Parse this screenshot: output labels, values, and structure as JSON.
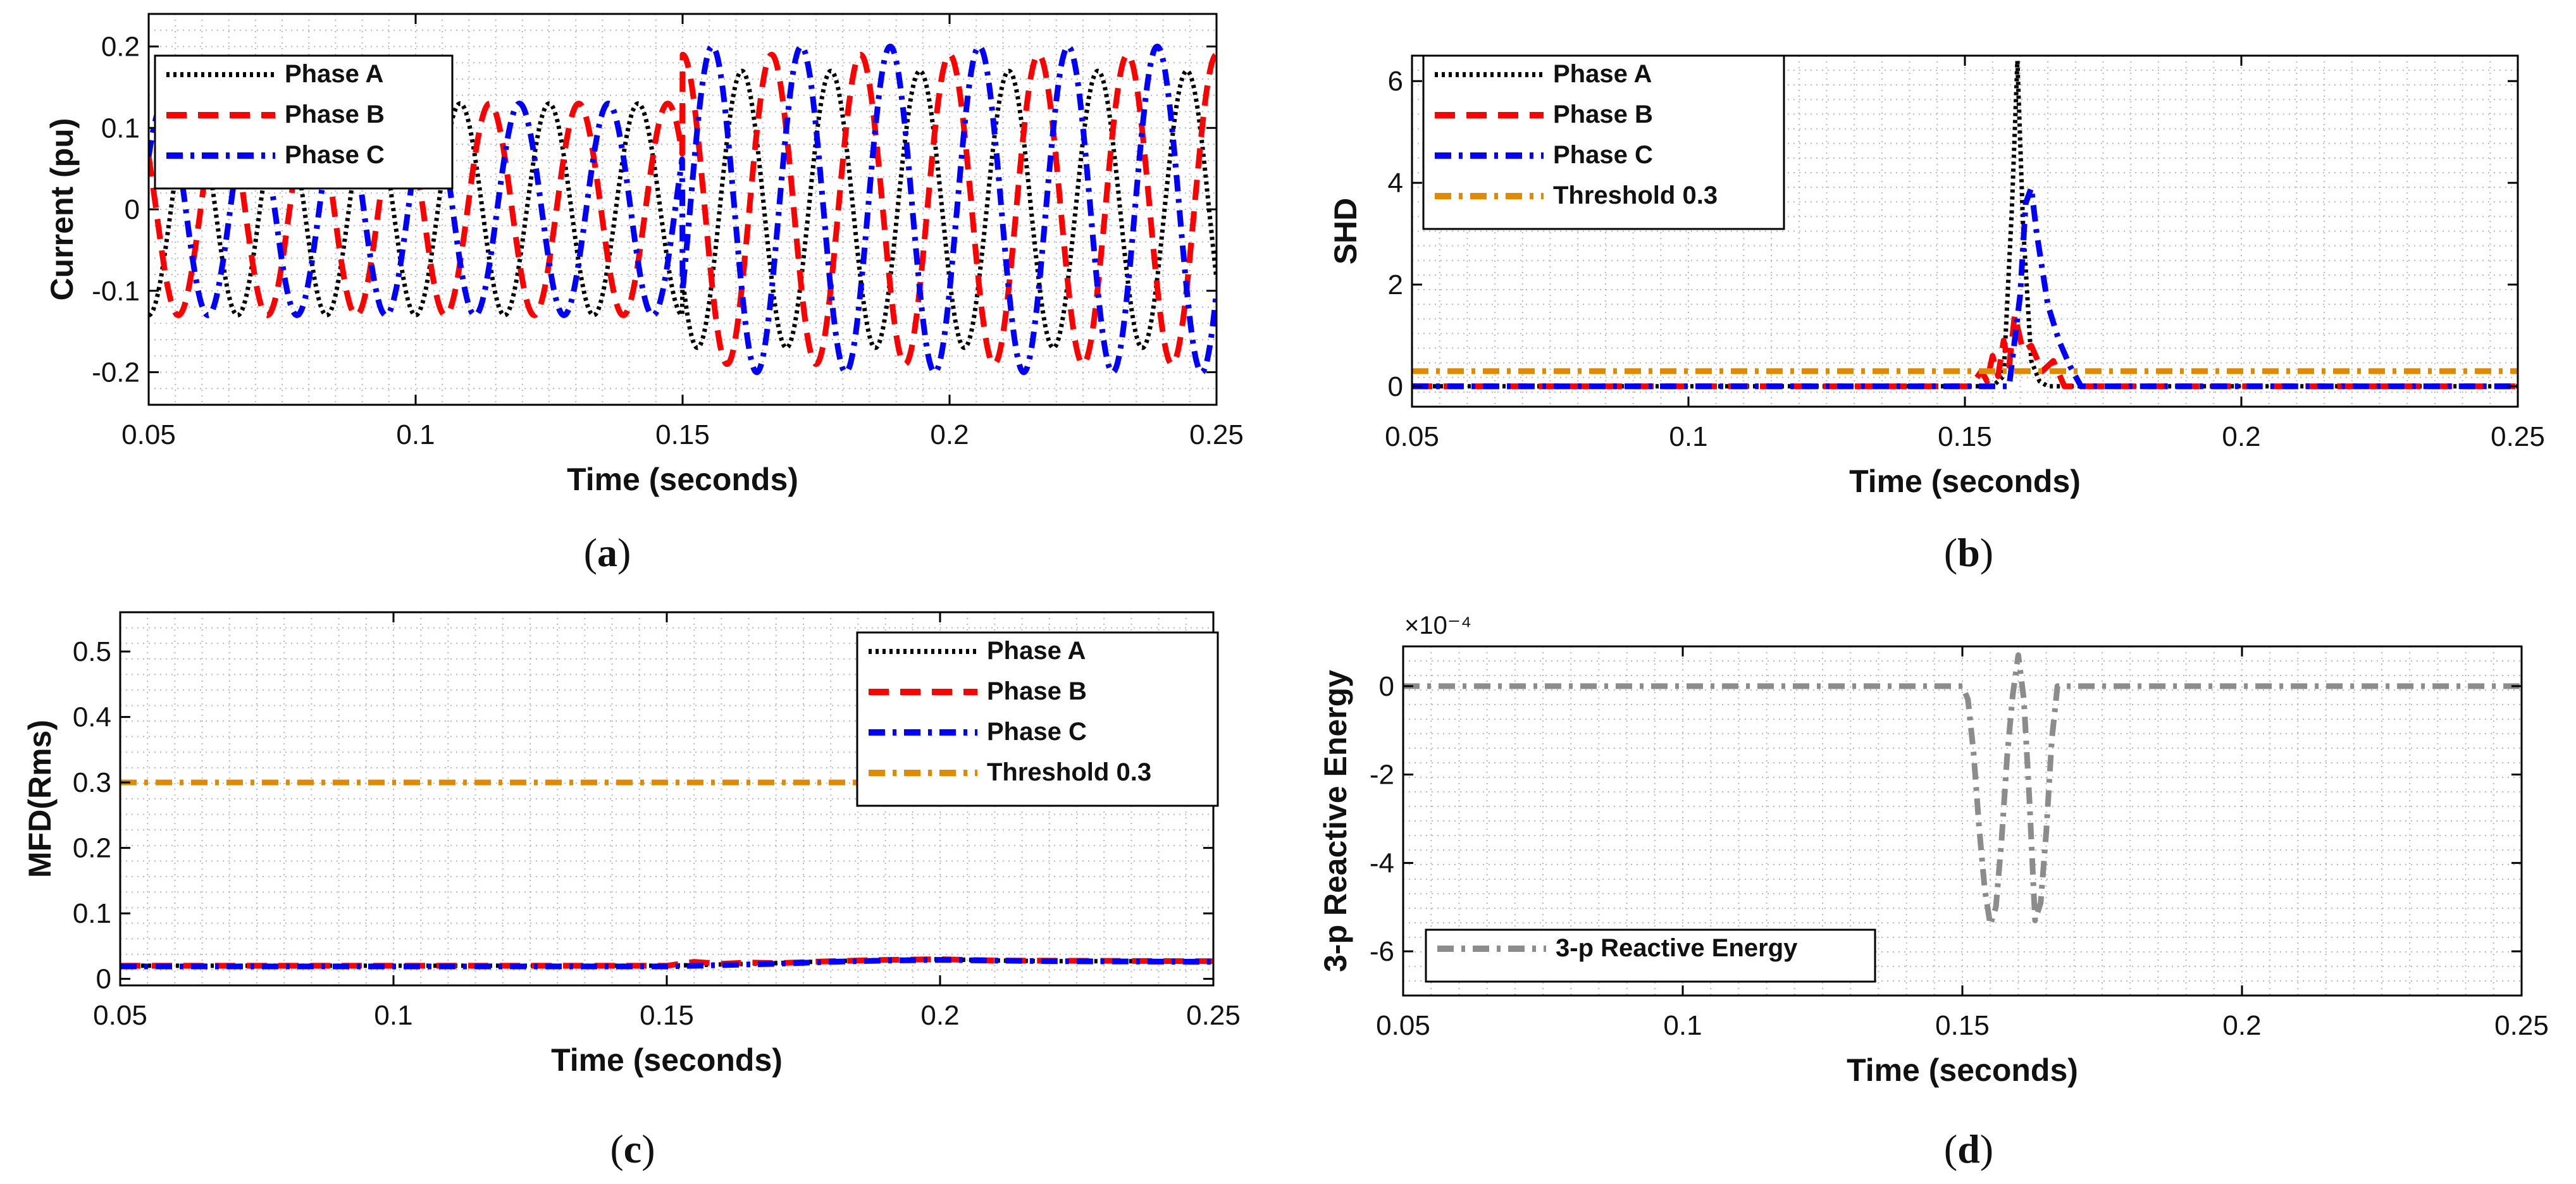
{
  "chart_data": [
    {
      "id": "a",
      "type": "line",
      "caption_letter": "a",
      "xlabel": "Time (seconds)",
      "ylabel": "Current (pu)",
      "xlim": [
        0.05,
        0.25
      ],
      "ylim": [
        -0.24,
        0.24
      ],
      "xticks": [
        0.05,
        0.1,
        0.15,
        0.2,
        0.25
      ],
      "xtick_labels": [
        "0.05",
        "0.1",
        "0.15",
        "0.2",
        "0.25"
      ],
      "yticks": [
        -0.2,
        -0.1,
        0,
        0.1,
        0.2
      ],
      "ytick_labels": [
        "-0.2",
        "-0.1",
        "0",
        "0.1",
        "0.2"
      ],
      "grid": true,
      "legend_position": "top-left",
      "series": [
        {
          "name": "Phase A",
          "color": "#000000",
          "style": "dotted",
          "segments": [
            {
              "from": 0.05,
              "to": 0.15,
              "amp": 0.13,
              "phase_deg": -90
            },
            {
              "from": 0.15,
              "to": 0.25,
              "amp": 0.17,
              "phase_deg": -150
            }
          ]
        },
        {
          "name": "Phase B",
          "color": "#ff0000",
          "style": "dashed",
          "segments": [
            {
              "from": 0.05,
              "to": 0.15,
              "amp": 0.13,
              "phase_deg": 150
            },
            {
              "from": 0.15,
              "to": 0.25,
              "amp": 0.19,
              "phase_deg": 90
            }
          ]
        },
        {
          "name": "Phase C",
          "color": "#0000ff",
          "style": "dashdot",
          "segments": [
            {
              "from": 0.05,
              "to": 0.15,
              "amp": 0.13,
              "phase_deg": 30
            },
            {
              "from": 0.15,
              "to": 0.25,
              "amp": 0.2,
              "phase_deg": -30
            }
          ]
        }
      ],
      "frequency_hz": 60
    },
    {
      "id": "b",
      "type": "line",
      "caption_letter": "b",
      "xlabel": "Time (seconds)",
      "ylabel": "SHD",
      "xlim": [
        0.05,
        0.25
      ],
      "ylim": [
        -0.4,
        6.5
      ],
      "xticks": [
        0.05,
        0.1,
        0.15,
        0.2,
        0.25
      ],
      "xtick_labels": [
        "0.05",
        "0.1",
        "0.15",
        "0.2",
        "0.25"
      ],
      "yticks": [
        0,
        2,
        4,
        6
      ],
      "ytick_labels": [
        "0",
        "2",
        "4",
        "6"
      ],
      "grid": true,
      "legend_position": "top-left",
      "series": [
        {
          "name": "Phase A",
          "color": "#000000",
          "style": "dotted",
          "x": [
            0.05,
            0.155,
            0.157,
            0.1585,
            0.1595,
            0.1605,
            0.162,
            0.1635,
            0.165,
            0.25
          ],
          "y": [
            0,
            0,
            0.2,
            3.5,
            6.4,
            3.2,
            0.5,
            0.1,
            0,
            0
          ]
        },
        {
          "name": "Phase B",
          "color": "#ff0000",
          "style": "dashed",
          "x": [
            0.05,
            0.151,
            0.153,
            0.154,
            0.155,
            0.156,
            0.157,
            0.158,
            0.159,
            0.1605,
            0.162,
            0.164,
            0.166,
            0.168,
            0.25
          ],
          "y": [
            0,
            0,
            0.3,
            0.1,
            0.6,
            0.2,
            0.9,
            0.4,
            1.4,
            0.7,
            0.8,
            0.3,
            0.5,
            0,
            0
          ]
        },
        {
          "name": "Phase C",
          "color": "#0000ff",
          "style": "dashdot",
          "x": [
            0.05,
            0.158,
            0.16,
            0.161,
            0.162,
            0.163,
            0.165,
            0.167,
            0.169,
            0.171,
            0.25
          ],
          "y": [
            0,
            0,
            1.8,
            3.6,
            3.9,
            3.0,
            1.6,
            0.9,
            0.4,
            0,
            0
          ]
        },
        {
          "name": "Threshold 0.3",
          "color": "#e08a00",
          "style": "dashdot",
          "x": [
            0.05,
            0.25
          ],
          "y": [
            0.3,
            0.3
          ]
        }
      ]
    },
    {
      "id": "c",
      "type": "line",
      "caption_letter": "c",
      "xlabel": "Time (seconds)",
      "ylabel": "MFD(Rms)",
      "xlim": [
        0.05,
        0.25
      ],
      "ylim": [
        -0.01,
        0.56
      ],
      "xticks": [
        0.05,
        0.1,
        0.15,
        0.2,
        0.25
      ],
      "xtick_labels": [
        "0.05",
        "0.1",
        "0.15",
        "0.2",
        "0.25"
      ],
      "yticks": [
        0,
        0.1,
        0.2,
        0.3,
        0.4,
        0.5
      ],
      "ytick_labels": [
        "0",
        "0.1",
        "0.2",
        "0.3",
        "0.4",
        "0.5"
      ],
      "grid": true,
      "legend_position": "top-right",
      "series": [
        {
          "name": "Phase A",
          "color": "#000000",
          "style": "dotted",
          "x": [
            0.05,
            0.15,
            0.16,
            0.17,
            0.18,
            0.19,
            0.2,
            0.21,
            0.22,
            0.25
          ],
          "y": [
            0.02,
            0.02,
            0.022,
            0.024,
            0.027,
            0.029,
            0.03,
            0.028,
            0.027,
            0.027
          ]
        },
        {
          "name": "Phase B",
          "color": "#ff0000",
          "style": "dashed",
          "x": [
            0.05,
            0.15,
            0.155,
            0.16,
            0.165,
            0.17,
            0.18,
            0.19,
            0.2,
            0.21,
            0.25
          ],
          "y": [
            0.02,
            0.02,
            0.026,
            0.023,
            0.025,
            0.024,
            0.027,
            0.029,
            0.03,
            0.028,
            0.027
          ]
        },
        {
          "name": "Phase C",
          "color": "#0000ff",
          "style": "dashdot",
          "x": [
            0.05,
            0.15,
            0.16,
            0.17,
            0.18,
            0.19,
            0.2,
            0.21,
            0.22,
            0.25
          ],
          "y": [
            0.019,
            0.019,
            0.021,
            0.023,
            0.026,
            0.028,
            0.029,
            0.028,
            0.027,
            0.026
          ]
        },
        {
          "name": "Threshold 0.3",
          "color": "#e08a00",
          "style": "dashdot",
          "x": [
            0.05,
            0.25
          ],
          "y": [
            0.3,
            0.3
          ]
        }
      ]
    },
    {
      "id": "d",
      "type": "line",
      "caption_letter": "d",
      "xlabel": "Time (seconds)",
      "ylabel": "3-p Reactive Energy",
      "exponent_label": "×10⁻⁴",
      "xlim": [
        0.05,
        0.25
      ],
      "ylim": [
        -7.0,
        0.9
      ],
      "xticks": [
        0.05,
        0.1,
        0.15,
        0.2,
        0.25
      ],
      "xtick_labels": [
        "0.05",
        "0.1",
        "0.15",
        "0.2",
        "0.25"
      ],
      "yticks": [
        -6,
        -4,
        -2,
        0
      ],
      "ytick_labels": [
        "-6",
        "-4",
        "-2",
        "0"
      ],
      "grid": true,
      "legend_position": "bottom-left",
      "series": [
        {
          "name": "3-p Reactive Energy",
          "color": "#8c8c8c",
          "style": "dashdot",
          "x": [
            0.05,
            0.15,
            0.151,
            0.152,
            0.153,
            0.154,
            0.155,
            0.156,
            0.157,
            0.158,
            0.159,
            0.16,
            0.161,
            0.162,
            0.163,
            0.164,
            0.165,
            0.166,
            0.167,
            0.25
          ],
          "y": [
            0,
            0,
            -0.3,
            -1.5,
            -3.2,
            -4.6,
            -5.4,
            -5.0,
            -3.5,
            -1.6,
            -0.2,
            0.7,
            -0.3,
            -2.6,
            -5.3,
            -4.9,
            -3.3,
            -1.2,
            0,
            0
          ]
        }
      ]
    }
  ]
}
